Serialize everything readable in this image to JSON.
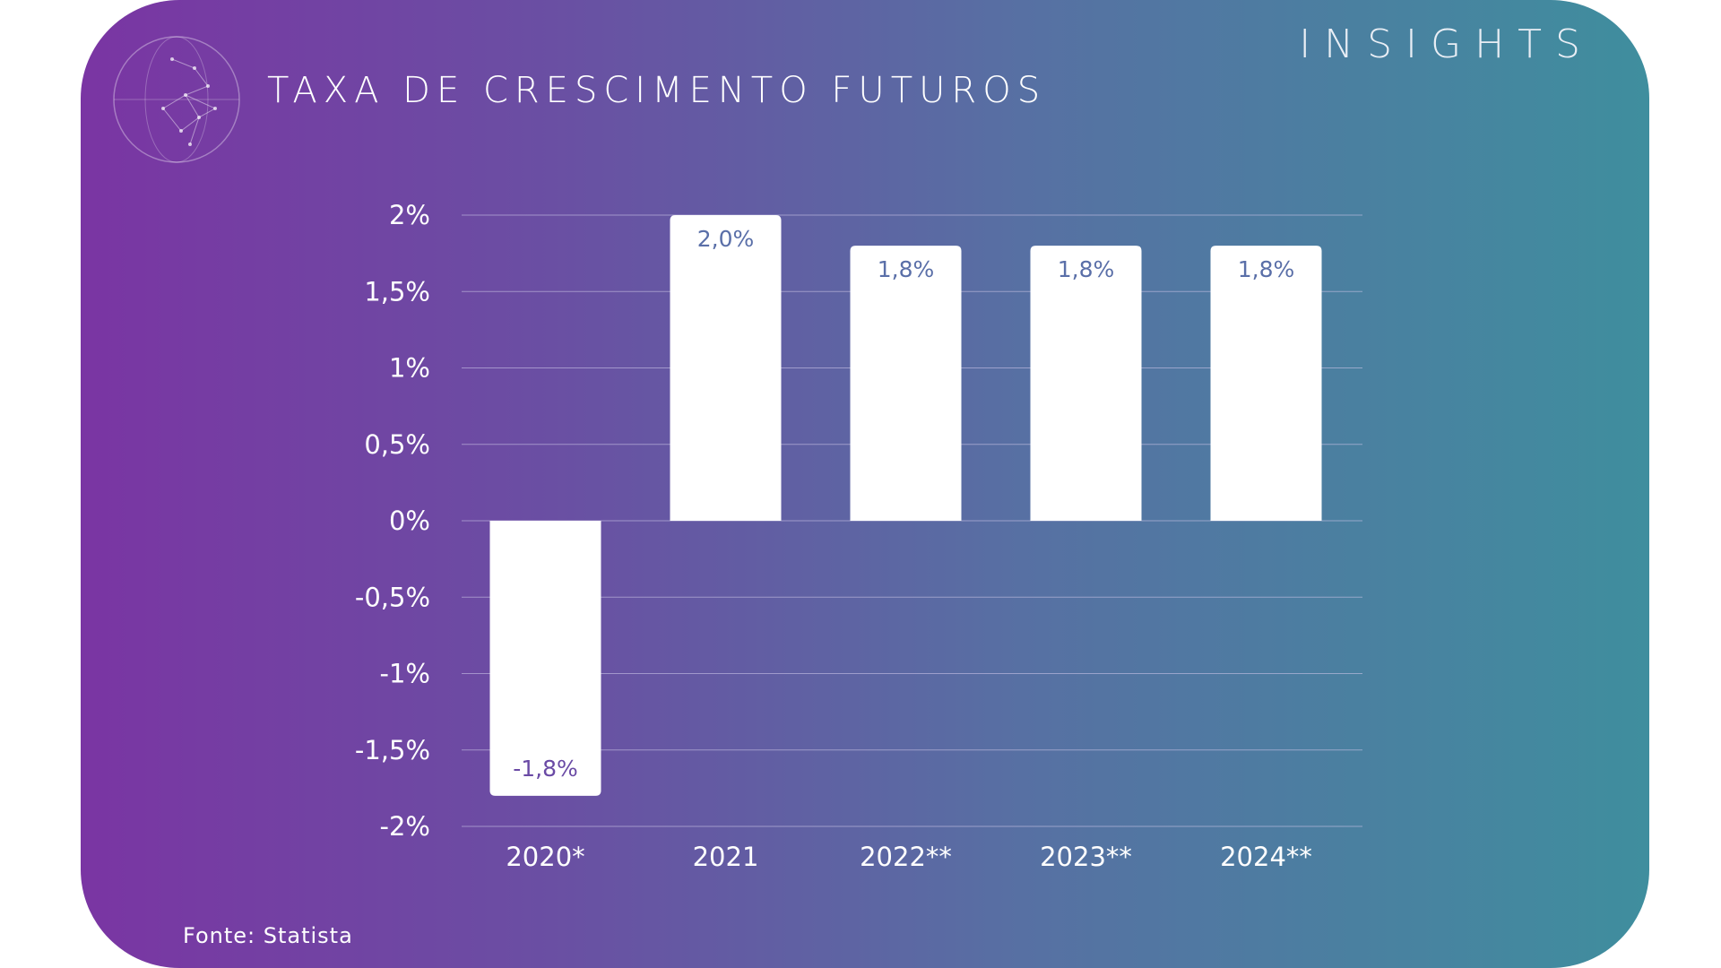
{
  "brand": "INSIGHTS",
  "source": "Fonte: Statista",
  "colors": {
    "bar": "#ffffff",
    "grid": "#c9c3e6",
    "label_neg": "#6a4aa5",
    "label_pos": "#5a6fa8"
  },
  "chart_data": {
    "type": "bar",
    "title": "TAXA DE CRESCIMENTO FUTUROS",
    "categories": [
      "2020*",
      "2021",
      "2022**",
      "2023**",
      "2024**"
    ],
    "values": [
      -1.8,
      2.0,
      1.8,
      1.8,
      1.8
    ],
    "data_labels": [
      "-1,8%",
      "2,0%",
      "1,8%",
      "1,8%",
      "1,8%"
    ],
    "yticks": [
      2,
      1.5,
      1,
      0.5,
      0,
      -0.5,
      -1,
      -1.5,
      -2
    ],
    "ytick_labels": [
      "2%",
      "1,5%",
      "1%",
      "0,5%",
      "0%",
      "-0,5%",
      "-1%",
      "-1,5%",
      "-2%"
    ],
    "ylim": [
      -2,
      2
    ],
    "grid": true,
    "legend": "none"
  }
}
